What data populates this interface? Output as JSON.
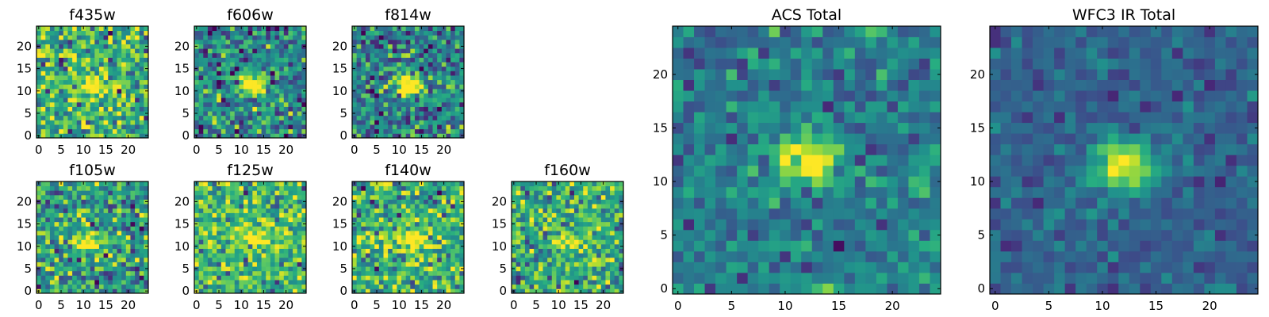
{
  "figure_title": "",
  "colormap": "viridis",
  "colors": {
    "background": "#ffffff",
    "axes": "#000000",
    "cmap_low": "#440154",
    "cmap_high": "#fde725"
  },
  "chart_data": [
    {
      "type": "heatmap",
      "title": "f435w",
      "grid_size": 25,
      "source_center": [
        12,
        11.5
      ],
      "source_peak": 0.55,
      "noise_mean": 0.65,
      "noise_sigma": 0.22,
      "seed": 11,
      "xticks": [
        0,
        5,
        10,
        15,
        20
      ],
      "yticks": [
        0,
        5,
        10,
        15,
        20
      ],
      "xlim": [
        0,
        25
      ],
      "ylim": [
        0,
        25
      ]
    },
    {
      "type": "heatmap",
      "title": "f606w",
      "grid_size": 25,
      "source_center": [
        12.5,
        11.5
      ],
      "source_peak": 0.75,
      "noise_mean": 0.45,
      "noise_sigma": 0.2,
      "seed": 23,
      "xticks": [
        0,
        5,
        10,
        15,
        20
      ],
      "yticks": [
        0,
        5,
        10,
        15,
        20
      ],
      "xlim": [
        0,
        25
      ],
      "ylim": [
        0,
        25
      ]
    },
    {
      "type": "heatmap",
      "title": "f814w",
      "grid_size": 25,
      "source_center": [
        12.5,
        11.5
      ],
      "source_peak": 0.7,
      "noise_mean": 0.45,
      "noise_sigma": 0.2,
      "seed": 37,
      "xticks": [
        0,
        5,
        10,
        15,
        20
      ],
      "yticks": [
        0,
        5,
        10,
        15,
        20
      ],
      "xlim": [
        0,
        25
      ],
      "ylim": [
        0,
        25
      ]
    },
    {
      "type": "heatmap",
      "title": "f105w",
      "grid_size": 25,
      "source_center": [
        12,
        11
      ],
      "source_peak": 0.6,
      "noise_mean": 0.55,
      "noise_sigma": 0.22,
      "seed": 41,
      "xticks": [
        0,
        5,
        10,
        15,
        20
      ],
      "yticks": [
        0,
        5,
        10,
        15,
        20
      ],
      "xlim": [
        0,
        25
      ],
      "ylim": [
        0,
        25
      ]
    },
    {
      "type": "heatmap",
      "title": "f125w",
      "grid_size": 25,
      "source_center": [
        13,
        12.5
      ],
      "source_peak": 0.4,
      "noise_mean": 0.68,
      "noise_sigma": 0.2,
      "seed": 53,
      "xticks": [
        0,
        5,
        10,
        15,
        20
      ],
      "yticks": [
        0,
        5,
        10,
        15,
        20
      ],
      "xlim": [
        0,
        25
      ],
      "ylim": [
        0,
        25
      ]
    },
    {
      "type": "heatmap",
      "title": "f140w",
      "grid_size": 25,
      "source_center": [
        13,
        11.5
      ],
      "source_peak": 0.5,
      "noise_mean": 0.62,
      "noise_sigma": 0.2,
      "seed": 67,
      "xticks": [
        0,
        5,
        10,
        15,
        20
      ],
      "yticks": [
        0,
        5,
        10,
        15,
        20
      ],
      "xlim": [
        0,
        25
      ],
      "ylim": [
        0,
        25
      ]
    },
    {
      "type": "heatmap",
      "title": "f160w",
      "grid_size": 25,
      "source_center": [
        12,
        11
      ],
      "source_peak": 0.45,
      "noise_mean": 0.62,
      "noise_sigma": 0.2,
      "seed": 79,
      "xticks": [
        0,
        5,
        10,
        15,
        20
      ],
      "yticks": [
        0,
        5,
        10,
        15,
        20
      ],
      "xlim": [
        0,
        25
      ],
      "ylim": [
        0,
        25
      ]
    },
    {
      "type": "heatmap",
      "title": "ACS Total",
      "grid_size": 25,
      "source_center": [
        12,
        12
      ],
      "source_peak": 0.62,
      "noise_mean": 0.42,
      "noise_sigma": 0.13,
      "seed": 97,
      "xticks": [
        0,
        5,
        10,
        15,
        20
      ],
      "yticks": [
        0,
        5,
        10,
        15,
        20
      ],
      "xlim": [
        0,
        25
      ],
      "ylim": [
        0,
        25
      ]
    },
    {
      "type": "heatmap",
      "title": "WFC3 IR Total",
      "grid_size": 25,
      "source_center": [
        12,
        11.5
      ],
      "source_peak": 0.72,
      "noise_mean": 0.32,
      "noise_sigma": 0.08,
      "seed": 101,
      "xticks": [
        0,
        5,
        10,
        15,
        20
      ],
      "yticks": [
        0,
        5,
        10,
        15,
        20
      ],
      "xlim": [
        0,
        25
      ],
      "ylim": [
        0,
        25
      ]
    }
  ]
}
